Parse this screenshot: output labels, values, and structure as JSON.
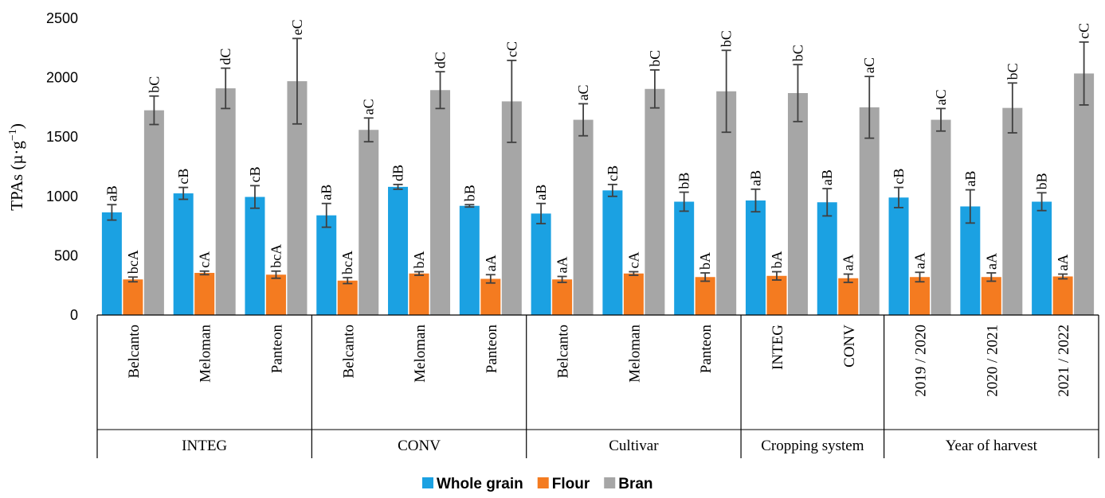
{
  "chart_data": {
    "type": "bar",
    "ylabel": "TPAs (µ·g",
    "ylabel_sup": "−1",
    "ylabel_close": ")",
    "ylim": [
      0,
      2500
    ],
    "yticks": [
      "0",
      "500",
      "1000",
      "1500",
      "2000",
      "2500"
    ],
    "grid": false,
    "legend_position": "bottom",
    "categories": [
      "Belcanto",
      "Meloman",
      "Panteon",
      "Belcanto",
      "Meloman",
      "Panteon",
      "Belcanto",
      "Meloman",
      "Panteon",
      "INTEG",
      "CONV",
      "2019 / 2020",
      "2020 / 2021",
      "2021 / 2022"
    ],
    "groups": [
      {
        "label": "INTEG",
        "count": 3
      },
      {
        "label": "CONV",
        "count": 3
      },
      {
        "label": "Cultivar",
        "count": 3
      },
      {
        "label": "Cropping system",
        "count": 2
      },
      {
        "label": "Year of harvest",
        "count": 3
      }
    ],
    "series": [
      {
        "name": "Whole grain",
        "color": "#1ba1e2",
        "values": [
          865,
          1025,
          995,
          840,
          1080,
          920,
          855,
          1050,
          955,
          965,
          950,
          990,
          915,
          955
        ],
        "errors": [
          65,
          50,
          95,
          100,
          20,
          10,
          85,
          50,
          80,
          95,
          115,
          85,
          140,
          75
        ],
        "labels": [
          "aB",
          "cB",
          "cB",
          "aB",
          "dB",
          "bB",
          "aB",
          "cB",
          "bB",
          "aB",
          "aB",
          "cB",
          "aB",
          "bB"
        ]
      },
      {
        "name": "Flour",
        "color": "#f47b20",
        "values": [
          300,
          355,
          340,
          290,
          350,
          305,
          300,
          350,
          320,
          330,
          310,
          320,
          320,
          325
        ],
        "errors": [
          20,
          15,
          30,
          25,
          15,
          35,
          25,
          15,
          35,
          35,
          35,
          40,
          35,
          20
        ],
        "labels": [
          "bcA",
          "cA",
          "bcA",
          "bcA",
          "bA",
          "aA",
          "aA",
          "cA",
          "bA",
          "bA",
          "aA",
          "aA",
          "aA",
          "aA"
        ]
      },
      {
        "name": "Bran",
        "color": "#a6a6a6",
        "values": [
          1725,
          1910,
          1970,
          1560,
          1895,
          1800,
          1645,
          1905,
          1885,
          1870,
          1750,
          1645,
          1745,
          2035
        ],
        "errors": [
          120,
          170,
          360,
          100,
          155,
          345,
          135,
          160,
          345,
          240,
          260,
          95,
          210,
          265
        ],
        "labels": [
          "bC",
          "dC",
          "eC",
          "aC",
          "dC",
          "cC",
          "aC",
          "bC",
          "bC",
          "bC",
          "aC",
          "aC",
          "bC",
          "cC"
        ]
      }
    ]
  }
}
